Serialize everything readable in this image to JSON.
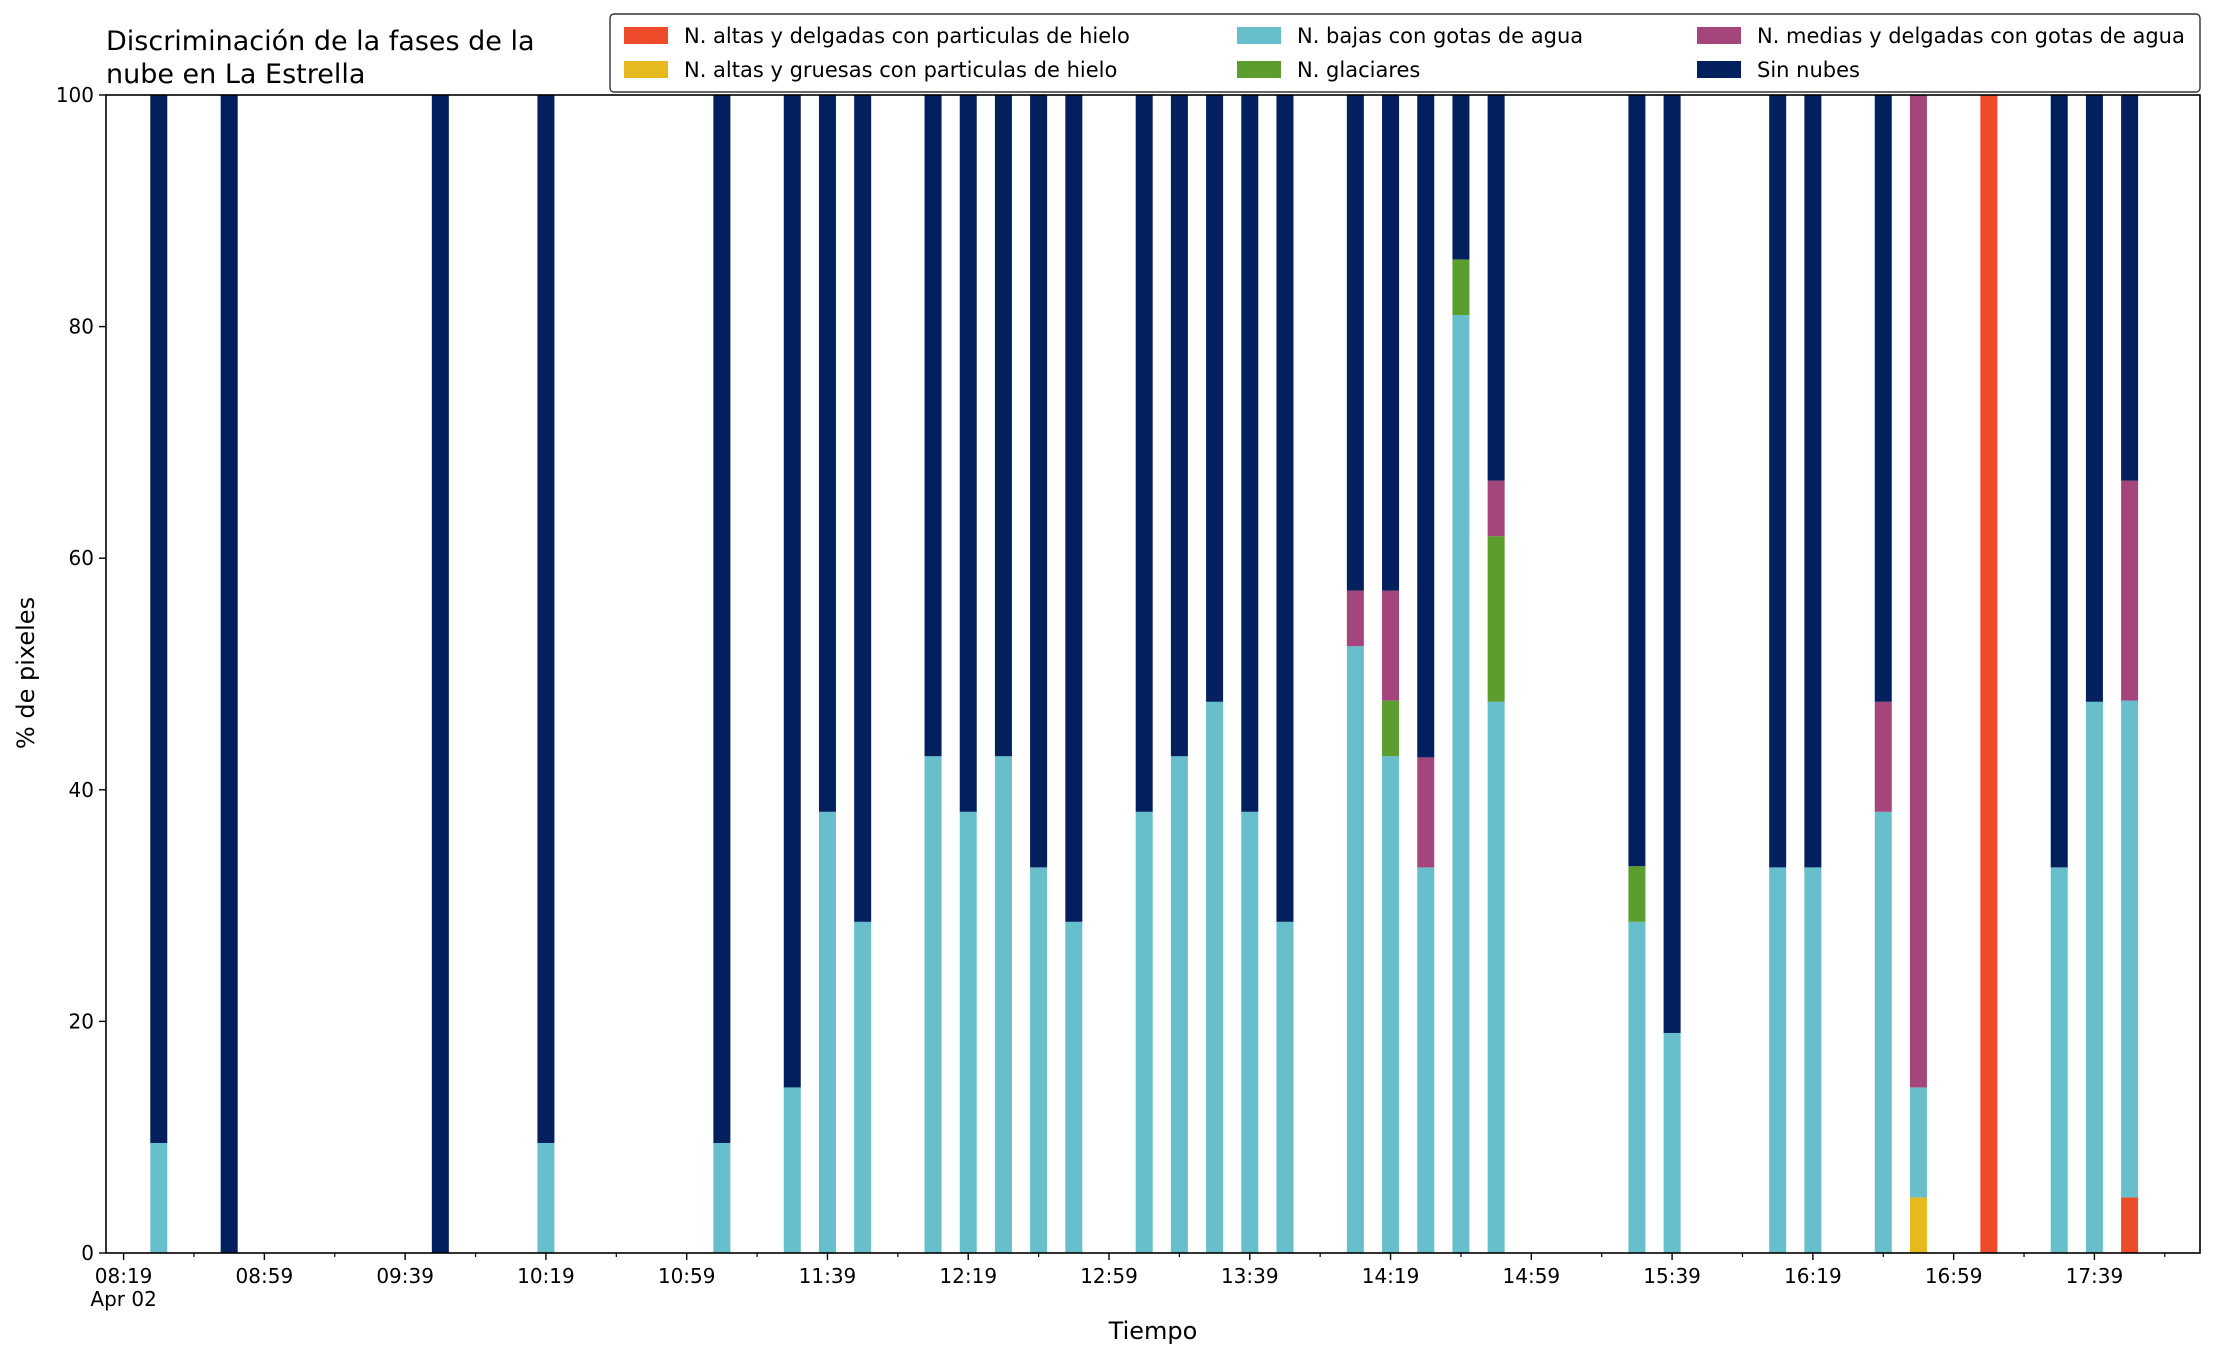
{
  "chart_data": {
    "type": "bar",
    "stacked": true,
    "title": "Discriminación de la fases de la\nnube en La Estrella",
    "xlabel": "Tiempo",
    "ylabel": "% de pixeles",
    "ylim": [
      0,
      100
    ],
    "yticks": [
      0,
      20,
      40,
      60,
      80,
      100
    ],
    "xlim": [
      "08:14",
      "18:09"
    ],
    "xtick_labels": [
      "08:19",
      "08:59",
      "09:39",
      "10:19",
      "10:59",
      "11:39",
      "12:19",
      "12:59",
      "13:39",
      "14:19",
      "14:59",
      "15:39",
      "16:19",
      "16:59",
      "17:39"
    ],
    "xtick_sublabel": "Apr 02",
    "minor_tick_interval_minutes": 20,
    "grid": false,
    "legend": {
      "placement": "top-right",
      "columns": 3,
      "order": [
        0,
        1,
        2,
        3,
        4,
        5
      ]
    },
    "categories": [
      "08:29",
      "08:49",
      "09:49",
      "10:19",
      "11:09",
      "11:29",
      "11:39",
      "11:49",
      "12:09",
      "12:19",
      "12:29",
      "12:39",
      "12:49",
      "13:09",
      "13:19",
      "13:29",
      "13:39",
      "13:49",
      "14:09",
      "14:19",
      "14:29",
      "14:39",
      "14:49",
      "15:29",
      "15:39",
      "16:09",
      "16:19",
      "16:39",
      "16:49",
      "17:09",
      "17:29",
      "17:39",
      "17:49"
    ],
    "series": [
      {
        "name": "N. altas y delgadas con particulas de hielo",
        "color": "#ee4b2b",
        "values": [
          0,
          0,
          0,
          0,
          0,
          0,
          0,
          0,
          0,
          0,
          0,
          0,
          0,
          0,
          0,
          0,
          0,
          0,
          0,
          0,
          0,
          0,
          0,
          0,
          0,
          0,
          0,
          0,
          0,
          100,
          0,
          0,
          4.8
        ]
      },
      {
        "name": "N. altas y gruesas con particulas de hielo",
        "color": "#e6b91e",
        "values": [
          0,
          0,
          0,
          0,
          0,
          0,
          0,
          0,
          0,
          0,
          0,
          0,
          0,
          0,
          0,
          0,
          0,
          0,
          0,
          0,
          0,
          0,
          0,
          0,
          0,
          0,
          0,
          0,
          4.8,
          0,
          0,
          0,
          0
        ]
      },
      {
        "name": "N. bajas con gotas de agua",
        "color": "#67bfcb",
        "values": [
          9.5,
          0,
          0,
          9.5,
          9.5,
          14.3,
          38.1,
          28.6,
          42.9,
          38.1,
          42.9,
          33.3,
          28.6,
          38.1,
          42.9,
          47.6,
          38.1,
          28.6,
          52.4,
          42.9,
          33.3,
          81.0,
          47.6,
          28.6,
          19.0,
          33.3,
          33.3,
          38.1,
          9.5,
          0,
          33.3,
          47.6,
          42.9
        ]
      },
      {
        "name": "N. glaciares",
        "color": "#5c9e2e",
        "values": [
          0,
          0,
          0,
          0,
          0,
          0,
          0,
          0,
          0,
          0,
          0,
          0,
          0,
          0,
          0,
          0,
          0,
          0,
          0,
          4.8,
          0,
          4.8,
          14.3,
          4.8,
          0,
          0,
          0,
          0,
          0,
          0,
          0,
          0,
          0
        ]
      },
      {
        "name": "N. medias y delgadas con gotas de agua",
        "color": "#a4467b",
        "values": [
          0,
          0,
          0,
          0,
          0,
          0,
          0,
          0,
          0,
          0,
          0,
          0,
          0,
          0,
          0,
          0,
          0,
          0,
          4.8,
          9.5,
          9.5,
          0,
          4.8,
          0,
          0,
          0,
          0,
          9.5,
          85.7,
          0,
          0,
          0,
          19.0
        ]
      },
      {
        "name": "Sin nubes",
        "color": "#021f5e",
        "values": [
          90.5,
          100,
          100,
          90.5,
          90.5,
          85.7,
          61.9,
          71.4,
          57.1,
          61.9,
          57.1,
          66.7,
          71.4,
          61.9,
          57.1,
          52.4,
          61.9,
          71.4,
          42.8,
          42.8,
          57.2,
          14.2,
          33.3,
          66.6,
          81.0,
          66.7,
          66.7,
          52.4,
          0,
          0,
          66.7,
          52.4,
          33.3
        ]
      }
    ]
  }
}
